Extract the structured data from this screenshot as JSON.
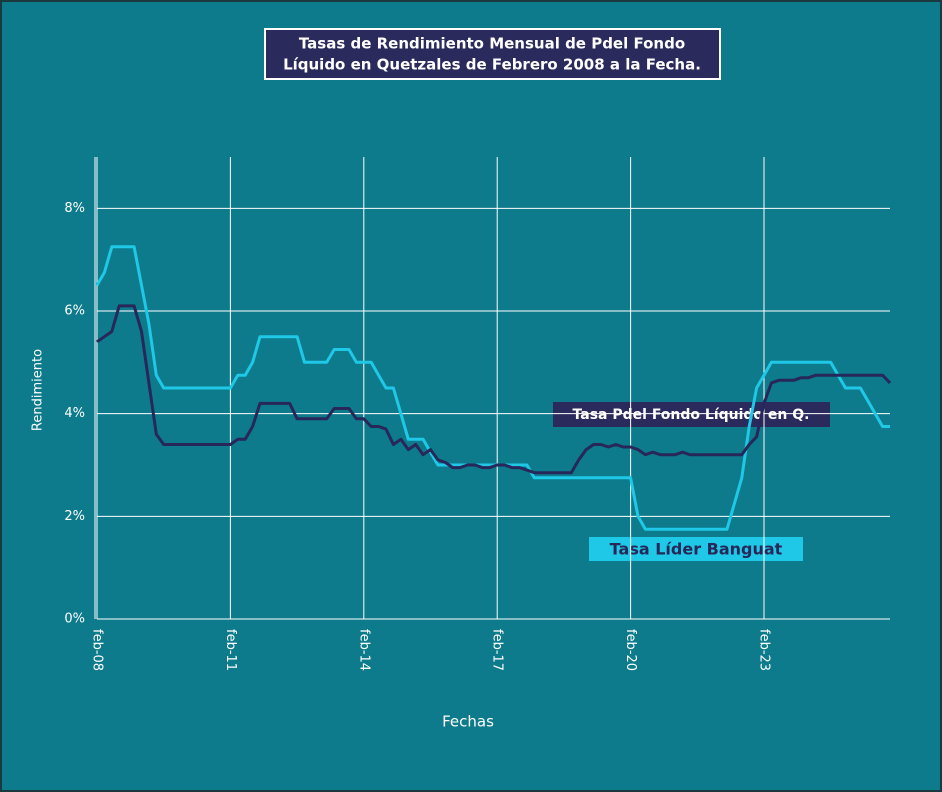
{
  "chart_data": {
    "type": "line",
    "title": [
      "Tasas de Rendimiento Mensual de Pdel Fondo",
      "Líquido en Quetzales de Febrero 2008 a la Fecha."
    ],
    "xlabel": "Fechas",
    "ylabel": "Rendimiento",
    "x": [
      "2008-02",
      "2008-04",
      "2008-06",
      "2008-08",
      "2008-10",
      "2008-12",
      "2009-02",
      "2009-04",
      "2009-06",
      "2009-08",
      "2009-10",
      "2009-12",
      "2010-02",
      "2010-04",
      "2010-06",
      "2010-08",
      "2010-10",
      "2010-12",
      "2011-02",
      "2011-04",
      "2011-06",
      "2011-08",
      "2011-10",
      "2011-12",
      "2012-02",
      "2012-04",
      "2012-06",
      "2012-08",
      "2012-10",
      "2012-12",
      "2013-02",
      "2013-04",
      "2013-06",
      "2013-08",
      "2013-10",
      "2013-12",
      "2014-02",
      "2014-04",
      "2014-06",
      "2014-08",
      "2014-10",
      "2014-12",
      "2015-02",
      "2015-04",
      "2015-06",
      "2015-08",
      "2015-10",
      "2015-12",
      "2016-02",
      "2016-04",
      "2016-06",
      "2016-08",
      "2016-10",
      "2016-12",
      "2017-02",
      "2017-04",
      "2017-06",
      "2017-08",
      "2017-10",
      "2017-12",
      "2018-02",
      "2018-04",
      "2018-06",
      "2018-08",
      "2018-10",
      "2018-12",
      "2019-02",
      "2019-04",
      "2019-06",
      "2019-08",
      "2019-10",
      "2019-12",
      "2020-02",
      "2020-04",
      "2020-06",
      "2020-08",
      "2020-10",
      "2020-12",
      "2021-02",
      "2021-04",
      "2021-06",
      "2021-08",
      "2021-10",
      "2021-12",
      "2022-02",
      "2022-04",
      "2022-06",
      "2022-08",
      "2022-10",
      "2022-12",
      "2023-02",
      "2023-04",
      "2023-06",
      "2023-08",
      "2023-10",
      "2023-12",
      "2024-02",
      "2024-04",
      "2024-06",
      "2024-08",
      "2024-10",
      "2024-12",
      "2025-02",
      "2025-04",
      "2025-06",
      "2025-08",
      "2025-10",
      "2025-12"
    ],
    "series": [
      {
        "name": "Tasa Líder Banguat",
        "color": "#1ec8e6",
        "values": [
          6.5,
          6.75,
          7.25,
          7.25,
          7.25,
          7.25,
          6.5,
          5.75,
          4.75,
          4.5,
          4.5,
          4.5,
          4.5,
          4.5,
          4.5,
          4.5,
          4.5,
          4.5,
          4.5,
          4.75,
          4.75,
          5.0,
          5.5,
          5.5,
          5.5,
          5.5,
          5.5,
          5.5,
          5.0,
          5.0,
          5.0,
          5.0,
          5.25,
          5.25,
          5.25,
          5.0,
          5.0,
          5.0,
          4.75,
          4.5,
          4.5,
          4.0,
          3.5,
          3.5,
          3.5,
          3.25,
          3.0,
          3.0,
          3.0,
          3.0,
          3.0,
          3.0,
          3.0,
          3.0,
          3.0,
          3.0,
          3.0,
          3.0,
          3.0,
          2.75,
          2.75,
          2.75,
          2.75,
          2.75,
          2.75,
          2.75,
          2.75,
          2.75,
          2.75,
          2.75,
          2.75,
          2.75,
          2.75,
          2.0,
          1.75,
          1.75,
          1.75,
          1.75,
          1.75,
          1.75,
          1.75,
          1.75,
          1.75,
          1.75,
          1.75,
          1.75,
          2.25,
          2.75,
          3.75,
          4.5,
          4.75,
          5.0,
          5.0,
          5.0,
          5.0,
          5.0,
          5.0,
          5.0,
          5.0,
          5.0,
          4.75,
          4.5,
          4.5,
          4.5,
          4.25,
          4.0,
          3.75,
          3.75
        ]
      },
      {
        "name": "Tasa Pdel Fondo Líquido en Q.",
        "color": "#27275a",
        "values": [
          5.4,
          5.5,
          5.6,
          6.1,
          6.1,
          6.1,
          5.6,
          4.6,
          3.6,
          3.4,
          3.4,
          3.4,
          3.4,
          3.4,
          3.4,
          3.4,
          3.4,
          3.4,
          3.4,
          3.5,
          3.5,
          3.75,
          4.2,
          4.2,
          4.2,
          4.2,
          4.2,
          3.9,
          3.9,
          3.9,
          3.9,
          3.9,
          4.1,
          4.1,
          4.1,
          3.9,
          3.9,
          3.75,
          3.75,
          3.7,
          3.4,
          3.5,
          3.3,
          3.4,
          3.2,
          3.3,
          3.1,
          3.05,
          2.95,
          2.95,
          3.0,
          3.0,
          2.95,
          2.95,
          3.0,
          3.0,
          2.95,
          2.95,
          2.9,
          2.85,
          2.85,
          2.85,
          2.85,
          2.85,
          2.85,
          3.1,
          3.3,
          3.4,
          3.4,
          3.35,
          3.4,
          3.35,
          3.35,
          3.3,
          3.2,
          3.25,
          3.2,
          3.2,
          3.2,
          3.25,
          3.2,
          3.2,
          3.2,
          3.2,
          3.2,
          3.2,
          3.2,
          3.2,
          3.4,
          3.55,
          4.2,
          4.6,
          4.65,
          4.65,
          4.65,
          4.7,
          4.7,
          4.75,
          4.75,
          4.75,
          4.75,
          4.75,
          4.75,
          4.75,
          4.75,
          4.75,
          4.75,
          4.6
        ]
      }
    ],
    "xlim": [
      "2008-02",
      "2025-12"
    ],
    "xticks": [
      {
        "value": "2008-02",
        "label": "feb-08"
      },
      {
        "value": "2011-02",
        "label": "feb-11"
      },
      {
        "value": "2014-02",
        "label": "feb-14"
      },
      {
        "value": "2017-02",
        "label": "feb-17"
      },
      {
        "value": "2020-02",
        "label": "feb-20"
      },
      {
        "value": "2023-02",
        "label": "feb-23"
      }
    ],
    "ylim": [
      0,
      9
    ],
    "yticks": [
      {
        "value": 0,
        "label": "0%"
      },
      {
        "value": 2,
        "label": "2%"
      },
      {
        "value": 4,
        "label": "4%"
      },
      {
        "value": 6,
        "label": "6%"
      },
      {
        "value": 8,
        "label": "8%"
      }
    ],
    "grid": true
  }
}
